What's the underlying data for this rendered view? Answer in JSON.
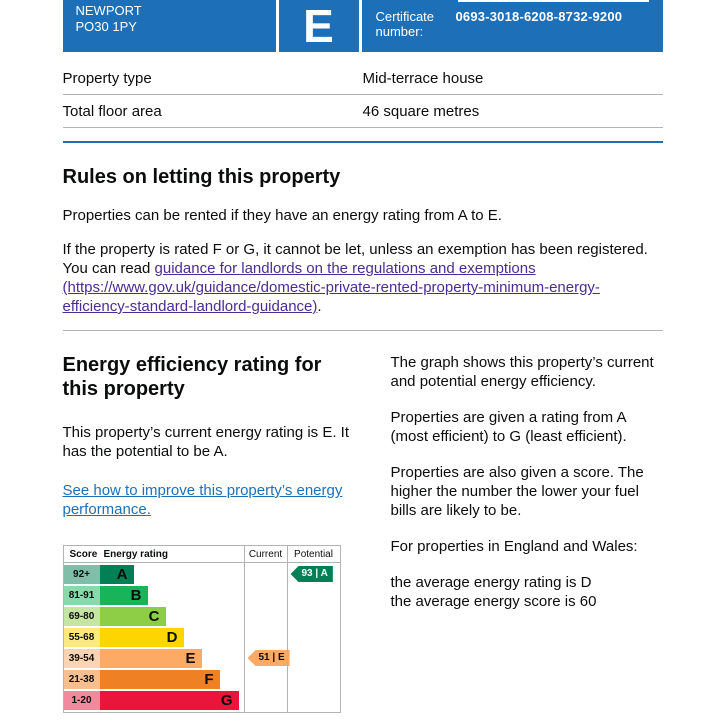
{
  "header": {
    "address_line1": "NEWPORT",
    "address_line2": "PO30 1PY",
    "rating_letter": "E",
    "certificate_label": "Certificate number:",
    "certificate_number": "0693-3018-6208-8732-9200"
  },
  "colors": {
    "govuk_blue": "#1d70b8",
    "text": "#0b0c0c",
    "border_gray": "#b1b4b6",
    "link_blue": "#1d70b8",
    "link_visited_purple": "#4c2c92"
  },
  "property": {
    "rows": [
      {
        "label": "Property type",
        "value": "Mid-terrace house"
      },
      {
        "label": "Total floor area",
        "value": "46 square metres"
      }
    ]
  },
  "rules": {
    "heading": "Rules on letting this property",
    "para1": "Properties can be rented if they have an energy rating from A to E.",
    "para2_before": "If the property is rated F or G, it cannot be let, unless an exemption has been registered. You can read ",
    "para2_link": "guidance for landlords on the regulations and exemptions (https://www.gov.uk/guidance/domestic-private-rented-property-minimum-energy-efficiency-standard-landlord-guidance)",
    "para2_after": "."
  },
  "energy": {
    "heading": "Energy efficiency rating for this property",
    "current_para": "This property’s current energy rating is E. It has the potential to be A.",
    "improve_link": "See how to improve this property’s energy performance.",
    "right_paras": [
      "The graph shows this property’s current and potential energy efficiency.",
      "Properties are given a rating from A (most efficient) to G (least efficient).",
      "Properties are also given a score. The higher the number the lower your fuel bills are likely to be.",
      "For properties in England and Wales:",
      "the average energy rating is D\nthe average energy score is 60"
    ]
  },
  "chart": {
    "headers": {
      "score": "Score",
      "rating": "Energy rating",
      "current": "Current",
      "potential": "Potential"
    },
    "bands": [
      {
        "score": "92+",
        "letter": "A",
        "color": "#008054",
        "tint": "#7fbfa9",
        "width": 34
      },
      {
        "score": "81-91",
        "letter": "B",
        "color": "#19b459",
        "tint": "#8bd9ab",
        "width": 48
      },
      {
        "score": "69-80",
        "letter": "C",
        "color": "#8dce46",
        "tint": "#c5e6a2",
        "width": 66
      },
      {
        "score": "55-68",
        "letter": "D",
        "color": "#ffd500",
        "tint": "#ffe97f",
        "width": 84
      },
      {
        "score": "39-54",
        "letter": "E",
        "color": "#fcaa65",
        "tint": "#fdd4b1",
        "width": 102
      },
      {
        "score": "21-38",
        "letter": "F",
        "color": "#ef8023",
        "tint": "#f7bf90",
        "width": 120
      },
      {
        "score": "1-20",
        "letter": "G",
        "color": "#e9153b",
        "tint": "#f4899d",
        "width": 139
      }
    ],
    "current": {
      "label": "51 | E",
      "color": "#fcaa65",
      "text_color": "#0b0c0c",
      "row": 4
    },
    "potential": {
      "label": "93 | A",
      "color": "#008054",
      "text_color": "#ffffff",
      "row": 0
    }
  }
}
